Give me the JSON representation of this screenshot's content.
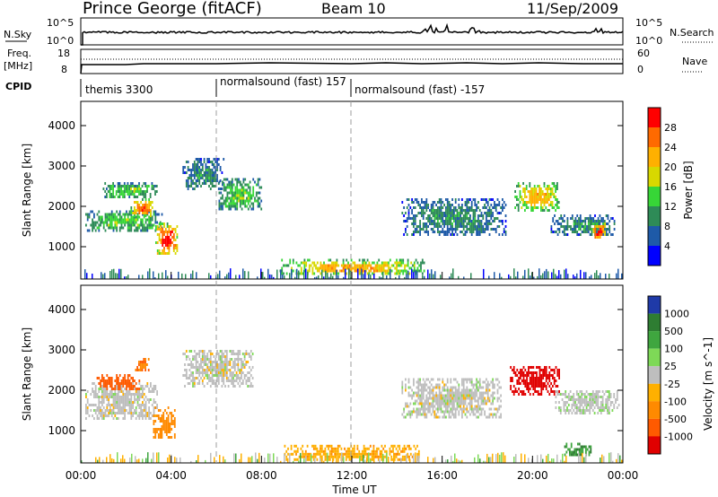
{
  "header": {
    "title": "Prince George (fitACF)",
    "beam": "Beam 10",
    "date": "11/Sep/2009"
  },
  "strips": {
    "nsky_label": "N.Sky",
    "nsky_ticks": [
      "10^5",
      "10^0"
    ],
    "nsearch_label": "N.Search",
    "nsearch_ticks": [
      "10^5",
      "10^0"
    ],
    "freq_label_line1": "Freq.",
    "freq_label_line2": "[MHz]",
    "freq_ticks": [
      "18",
      "8"
    ],
    "nave_label": "Nave",
    "nave_ticks": [
      "60",
      "0"
    ],
    "cpid_label": "CPID",
    "cpid_segments": [
      "themis 3300",
      "normalsound (fast) 157",
      "normalsound (fast) -157"
    ]
  },
  "axes": {
    "ylabel": "Slant Range [km]",
    "yticks": [
      1000,
      2000,
      3000,
      4000
    ],
    "ylim": [
      200,
      4600
    ],
    "xticks": [
      "00:00",
      "04:00",
      "08:00",
      "12:00",
      "16:00",
      "20:00",
      "00:00"
    ],
    "xlabel": "Time UT"
  },
  "power_colorbar": {
    "label": "Power [dB]",
    "ticks": [
      "28",
      "24",
      "20",
      "16",
      "12",
      "8",
      "4"
    ],
    "colors": [
      "#ff0000",
      "#ff6a00",
      "#ffb000",
      "#d8d800",
      "#37d637",
      "#2e8b57",
      "#1e5aa8",
      "#0000ff"
    ]
  },
  "velocity_colorbar": {
    "label": "Velocity [m s^-1]",
    "ticks": [
      "1000",
      "500",
      "100",
      "25",
      "-25",
      "-100",
      "-500",
      "-1000"
    ],
    "colors": [
      "#1f3aa8",
      "#2e7d32",
      "#3fa63f",
      "#7ed957",
      "#bebebe",
      "#ffb000",
      "#ff8a00",
      "#ff5a00",
      "#e00000"
    ]
  },
  "chart_data": [
    {
      "type": "heatmap",
      "title": "Power",
      "x_unit": "hours UT",
      "y_unit": "km",
      "regions": [
        {
          "t0": 0.2,
          "t1": 3.6,
          "r0": 1400,
          "r1": 1900,
          "level": 12
        },
        {
          "t0": 0.9,
          "t1": 3.4,
          "r0": 2200,
          "r1": 2600,
          "level": 12
        },
        {
          "t0": 2.2,
          "t1": 3.2,
          "r0": 1750,
          "r1": 2200,
          "level": 24
        },
        {
          "t0": 3.3,
          "t1": 4.3,
          "r0": 800,
          "r1": 1600,
          "level": 28
        },
        {
          "t0": 4.5,
          "t1": 6.3,
          "r0": 2400,
          "r1": 3200,
          "level": 8
        },
        {
          "t0": 6.1,
          "t1": 8.0,
          "r0": 1900,
          "r1": 2700,
          "level": 12
        },
        {
          "t0": 8.8,
          "t1": 15.2,
          "r0": 300,
          "r1": 700,
          "level": 20
        },
        {
          "t0": 14.2,
          "t1": 18.8,
          "r0": 1300,
          "r1": 2200,
          "level": 8
        },
        {
          "t0": 19.2,
          "t1": 21.2,
          "r0": 1900,
          "r1": 2600,
          "level": 20
        },
        {
          "t0": 20.8,
          "t1": 23.6,
          "r0": 1300,
          "r1": 1800,
          "level": 8
        },
        {
          "t0": 22.6,
          "t1": 23.2,
          "r0": 1200,
          "r1": 1600,
          "level": 28
        }
      ]
    },
    {
      "type": "heatmap",
      "title": "Velocity",
      "x_unit": "hours UT",
      "y_unit": "km",
      "regions": [
        {
          "t0": 0.2,
          "t1": 3.4,
          "r0": 1300,
          "r1": 2200,
          "vel": 0
        },
        {
          "t0": 0.7,
          "t1": 2.6,
          "r0": 2000,
          "r1": 2400,
          "vel": -400
        },
        {
          "t0": 2.4,
          "t1": 3.0,
          "r0": 2500,
          "r1": 2800,
          "vel": -300
        },
        {
          "t0": 3.2,
          "t1": 4.2,
          "r0": 800,
          "r1": 1600,
          "vel": -200
        },
        {
          "t0": 4.5,
          "t1": 7.6,
          "r0": 2100,
          "r1": 3000,
          "vel": 0
        },
        {
          "t0": 9.0,
          "t1": 15.0,
          "r0": 250,
          "r1": 650,
          "vel": -80
        },
        {
          "t0": 14.2,
          "t1": 18.6,
          "r0": 1300,
          "r1": 2300,
          "vel": 0
        },
        {
          "t0": 19.0,
          "t1": 21.2,
          "r0": 1900,
          "r1": 2600,
          "vel": -900
        },
        {
          "t0": 21.0,
          "t1": 23.8,
          "r0": 1400,
          "r1": 2000,
          "vel": 10
        },
        {
          "t0": 21.4,
          "t1": 22.6,
          "r0": 400,
          "r1": 700,
          "vel": 300
        }
      ]
    }
  ]
}
